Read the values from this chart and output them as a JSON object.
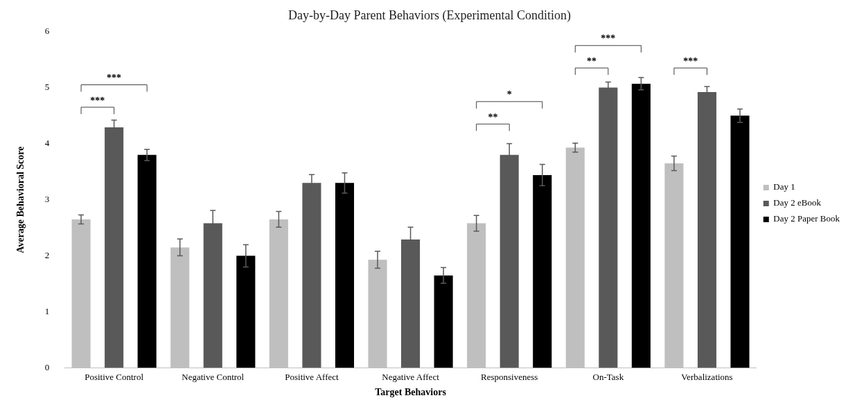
{
  "chart_data": {
    "type": "bar",
    "title": "Day-by-Day Parent Behaviors (Experimental Condition)",
    "xlabel": "Target Behaviors",
    "ylabel": "Average Behavioral Score",
    "categories": [
      "Positive Control",
      "Negative Control",
      "Positive Affect",
      "Negative Affect",
      "Responsiveness",
      "On-Task",
      "Verbalizations"
    ],
    "series": [
      {
        "name": "Day 1",
        "color": "#bfbfbf",
        "values": [
          2.65,
          2.15,
          2.65,
          1.93,
          2.58,
          3.93,
          3.65
        ],
        "errors": [
          0.08,
          0.15,
          0.14,
          0.15,
          0.14,
          0.08,
          0.13
        ]
      },
      {
        "name": "Day 2 eBook",
        "color": "#595959",
        "values": [
          4.29,
          2.58,
          3.3,
          2.29,
          3.8,
          5.0,
          4.92
        ],
        "errors": [
          0.13,
          0.23,
          0.15,
          0.22,
          0.2,
          0.1,
          0.1
        ]
      },
      {
        "name": "Day 2 Paper Book",
        "color": "#000000",
        "values": [
          3.8,
          2.0,
          3.3,
          1.65,
          3.44,
          5.07,
          4.5
        ],
        "errors": [
          0.1,
          0.2,
          0.18,
          0.14,
          0.19,
          0.11,
          0.12
        ]
      }
    ],
    "ylim": [
      0,
      6
    ],
    "yticks": [
      0,
      1,
      2,
      3,
      4,
      5,
      6
    ],
    "grid": false,
    "legend": "right",
    "annotations": [
      "***",
      "***",
      "**",
      "*",
      "**",
      "***",
      "***"
    ]
  }
}
